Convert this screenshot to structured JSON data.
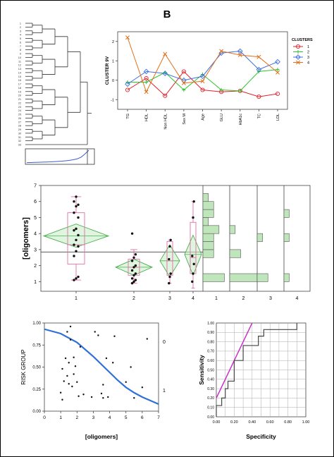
{
  "panel_label": "B",
  "colors": {
    "cluster1": "#e0202a",
    "cluster2": "#2fc52f",
    "cluster3": "#3f6fe0",
    "cluster4": "#e0701a",
    "box": "#e26fa6",
    "diamond_fill": "#c7ecc4",
    "diamond_line": "#4caf50",
    "hist_fill": "#bfe6bb",
    "logistic": "#2f6fd8",
    "roc": "#444444",
    "diagonal": "#cc22cc",
    "dendro_line": "#333333",
    "curve_blue": "#3a5fcf"
  },
  "chart_data": [
    {
      "type": "dendrogram",
      "id": "dendrogram",
      "leaf_labels": [
        "1",
        "2",
        "3",
        "4",
        "5",
        "6",
        "7",
        "8",
        "9",
        "10",
        "11",
        "12",
        "13",
        "14",
        "15",
        "16",
        "17",
        "18",
        "19",
        "20",
        "21",
        "22",
        "23",
        "24",
        "25",
        "26",
        "27",
        "28",
        "29",
        "30",
        "31",
        "32",
        "33"
      ],
      "distance_curve": [
        0.02,
        0.03,
        0.04,
        0.05,
        0.06,
        0.07,
        0.08,
        0.1,
        0.12,
        0.14,
        0.17,
        0.2,
        0.25,
        0.32,
        0.45,
        0.7,
        1.0
      ]
    },
    {
      "type": "line",
      "id": "clusters",
      "categories": [
        "TG",
        "HDL",
        "Non HDL",
        "Sex M",
        "Age",
        "GLU",
        "HbA1c",
        "TC",
        "LDL"
      ],
      "ylabel": "CLUSTER 9V",
      "ylim": [
        -1.5,
        2.5
      ],
      "yticks": [
        -1,
        0,
        1,
        2
      ],
      "legend_title": "CLUSTERS",
      "legend_position": "right",
      "series": [
        {
          "name": "1",
          "marker": "circle",
          "values": [
            -0.5,
            0.1,
            -0.8,
            0.45,
            -0.5,
            -0.6,
            -0.55,
            -0.85,
            -0.7
          ]
        },
        {
          "name": "2",
          "marker": "plus",
          "values": [
            -0.1,
            -0.1,
            0.4,
            -0.5,
            0.3,
            -0.5,
            -0.55,
            0.45,
            0.55
          ]
        },
        {
          "name": "3",
          "marker": "diamond",
          "values": [
            -0.2,
            0.45,
            0.35,
            0.0,
            0.2,
            1.4,
            1.5,
            0.55,
            0.95
          ]
        },
        {
          "name": "4",
          "marker": "x",
          "values": [
            2.2,
            -0.6,
            1.35,
            -0.15,
            -0.05,
            1.5,
            1.3,
            1.2,
            0.4
          ]
        }
      ]
    },
    {
      "type": "box",
      "id": "oligomers",
      "ylabel": "[oligomers]",
      "ylim": [
        0.4,
        7
      ],
      "yticks": [
        1,
        2,
        3,
        4,
        5,
        6,
        7
      ],
      "categories": [
        "1",
        "2",
        "3",
        "4"
      ],
      "grand_mean": 2.85,
      "groups": [
        {
          "name": "1",
          "min": 1.1,
          "q1": 2.1,
          "median": 3.3,
          "q3": 5.3,
          "max": 6.3,
          "mean": 3.85,
          "ci": [
            3.15,
            4.6
          ],
          "points": [
            1.1,
            1.2,
            1.3,
            2.6,
            2.9,
            3.2,
            3.3,
            3.6,
            3.9,
            4.2,
            4.3,
            5.0,
            5.3,
            5.7,
            5.8,
            6.0,
            6.3
          ]
        },
        {
          "name": "2",
          "min": 0.9,
          "q1": 1.4,
          "median": 1.9,
          "q3": 2.4,
          "max": 3.0,
          "mean": 1.9,
          "ci": [
            1.4,
            2.4
          ],
          "points": [
            0.9,
            1.0,
            1.1,
            1.2,
            1.4,
            1.5,
            1.7,
            1.9,
            2.0,
            2.3,
            2.5,
            2.7,
            4.0
          ]
        },
        {
          "name": "3",
          "min": 0.9,
          "q1": 1.4,
          "median": 2.3,
          "q3": 3.5,
          "max": 3.6,
          "mean": 2.3,
          "ci": [
            1.3,
            3.3
          ],
          "points": [
            0.9,
            1.3,
            1.5,
            2.4,
            3.2,
            3.6
          ]
        },
        {
          "name": "4",
          "min": 0.6,
          "q1": 1.5,
          "median": 2.5,
          "q3": 4.7,
          "max": 6.0,
          "mean": 2.7,
          "ci": [
            1.4,
            3.9
          ],
          "points": [
            1.0,
            1.5,
            2.1,
            2.6,
            5.0,
            6.0
          ]
        }
      ],
      "histograms": {
        "bins": [
          [
            1,
            1.5
          ],
          [
            2.5,
            3
          ],
          [
            3,
            3.5
          ],
          [
            3.5,
            4
          ],
          [
            4,
            4.5
          ],
          [
            4.5,
            5
          ],
          [
            5,
            5.5
          ],
          [
            5.5,
            6
          ],
          [
            6,
            6.5
          ]
        ],
        "xlabels": [
          "1",
          "2",
          "3",
          "4"
        ],
        "counts": [
          [
            4,
            2,
            2,
            2,
            3,
            1,
            2,
            2,
            1
          ],
          [
            5,
            2,
            0,
            0,
            1,
            0,
            0,
            0,
            0
          ],
          [
            2,
            0,
            0,
            1,
            0,
            0,
            0,
            0,
            0
          ],
          [
            1,
            0,
            0,
            1,
            0,
            0,
            1,
            0,
            0
          ]
        ],
        "max_count": 5
      }
    },
    {
      "type": "scatter",
      "id": "logistic",
      "xlabel": "[oligomers]",
      "ylabel": "RISK GROUP",
      "xlim": [
        0,
        7
      ],
      "ylim": [
        0,
        1
      ],
      "xticks": [
        0,
        1,
        2,
        3,
        4,
        5,
        6,
        7
      ],
      "yticks": [
        "0.00",
        "0.25",
        "0.50",
        "0.75",
        "1.00"
      ],
      "right_labels": [
        "0",
        "1"
      ],
      "points": [
        [
          1.0,
          0.21
        ],
        [
          1.1,
          0.13
        ],
        [
          1.1,
          0.48
        ],
        [
          1.2,
          0.34
        ],
        [
          1.3,
          0.6
        ],
        [
          1.4,
          0.4
        ],
        [
          1.4,
          0.9
        ],
        [
          1.5,
          0.31
        ],
        [
          1.5,
          0.55
        ],
        [
          1.6,
          0.81
        ],
        [
          1.6,
          0.96
        ],
        [
          1.7,
          0.28
        ],
        [
          1.8,
          0.42
        ],
        [
          1.8,
          0.61
        ],
        [
          1.9,
          0.51
        ],
        [
          2.0,
          0.33
        ],
        [
          2.1,
          0.17
        ],
        [
          2.2,
          0.73
        ],
        [
          2.4,
          0.19
        ],
        [
          2.9,
          0.16
        ],
        [
          3.1,
          0.9
        ],
        [
          3.3,
          0.86
        ],
        [
          3.5,
          0.2
        ],
        [
          3.6,
          0.15
        ],
        [
          3.6,
          0.3
        ],
        [
          3.8,
          0.6
        ],
        [
          3.9,
          0.16
        ],
        [
          4.2,
          0.55
        ],
        [
          4.3,
          0.85
        ],
        [
          5.0,
          0.33
        ],
        [
          5.3,
          0.5
        ],
        [
          5.5,
          0.15
        ],
        [
          6.0,
          0.27
        ],
        [
          6.3,
          0.82
        ]
      ],
      "curve": {
        "x": [
          0,
          1,
          2,
          3,
          3.5,
          4,
          4.5,
          5,
          5.5,
          6,
          6.5,
          7
        ],
        "y": [
          0.93,
          0.88,
          0.78,
          0.62,
          0.53,
          0.44,
          0.35,
          0.27,
          0.21,
          0.16,
          0.12,
          0.08
        ]
      }
    },
    {
      "type": "line",
      "id": "roc",
      "xlabel": "Specificity",
      "ylabel": "Sensitivity",
      "xlim": [
        0,
        1
      ],
      "ylim": [
        0,
        1
      ],
      "xticks": [
        "0.00",
        "0.20",
        "0.40",
        "0.60",
        "0.80",
        "1.00"
      ],
      "yticks": [
        "0.00",
        "0.10",
        "0.20",
        "0.30",
        "0.40",
        "0.50",
        "0.60",
        "0.70",
        "0.80",
        "0.90",
        "1.00"
      ],
      "roc_x": [
        0,
        0,
        0.06,
        0.06,
        0.1,
        0.1,
        0.13,
        0.13,
        0.2,
        0.2,
        0.3,
        0.3,
        0.47,
        0.47,
        0.53,
        0.53,
        0.9,
        0.9
      ],
      "roc_y": [
        0,
        0.12,
        0.12,
        0.2,
        0.2,
        0.3,
        0.3,
        0.38,
        0.38,
        0.6,
        0.6,
        0.76,
        0.76,
        0.86,
        0.86,
        0.93,
        0.93,
        1.0
      ],
      "diagonal": [
        [
          0,
          0.2
        ],
        [
          0.4,
          1.0
        ]
      ]
    }
  ]
}
